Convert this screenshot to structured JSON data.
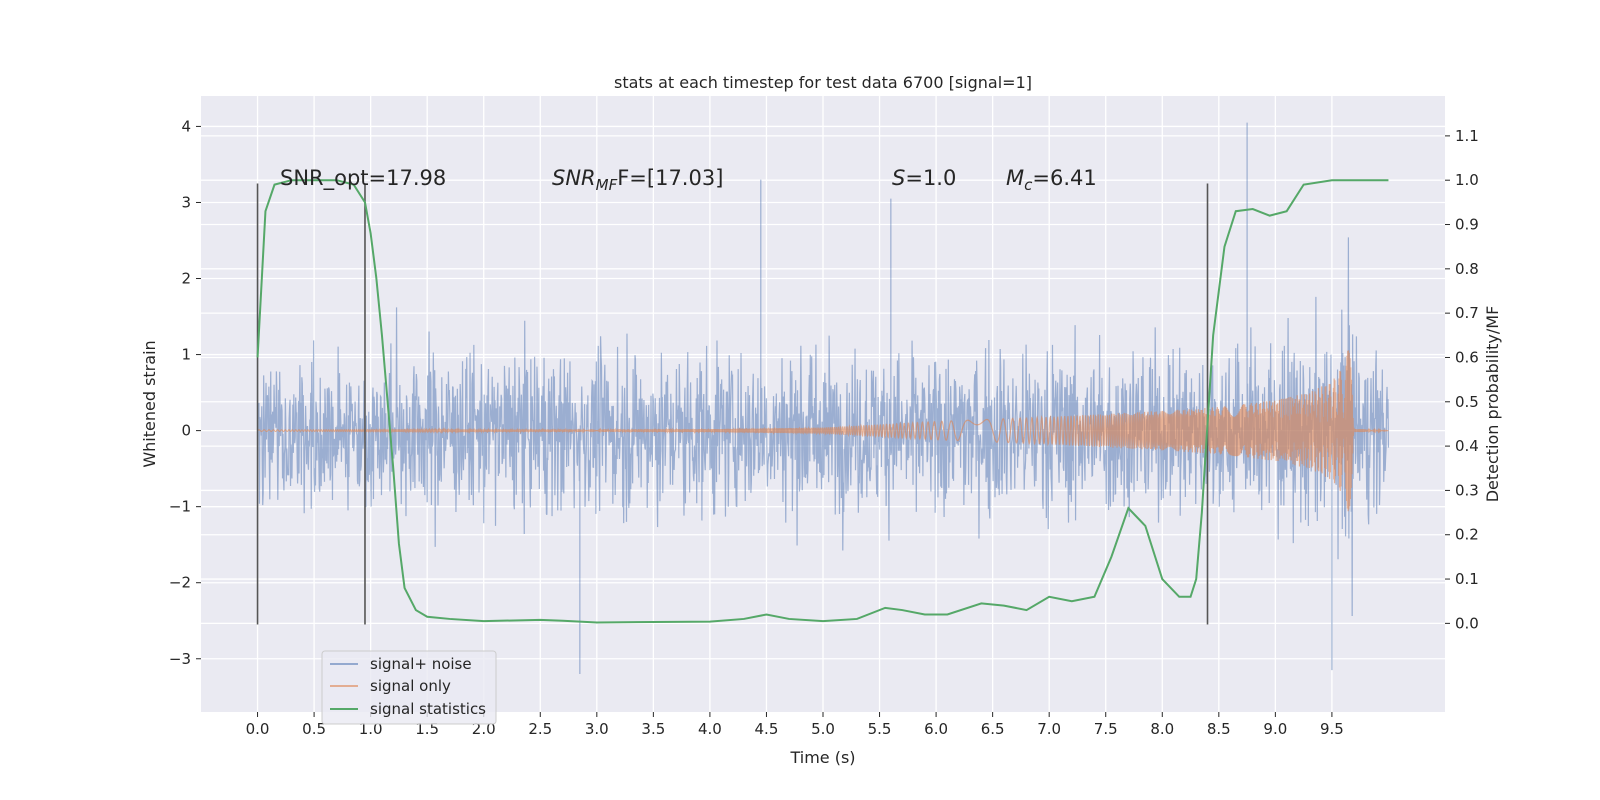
{
  "chart_data": {
    "type": "line",
    "title": "stats at each timestep for test data 6700 [signal=1]",
    "xlabel": "Time (s)",
    "ylabel_left": "Whitened strain",
    "ylabel_right": "Detection probability/MF",
    "xlim": [
      -0.5,
      10.5
    ],
    "ylim_left": [
      -3.7,
      4.4
    ],
    "ylim_right": [
      -0.2,
      1.19
    ],
    "x_ticks": [
      "0.0",
      "0.5",
      "1.0",
      "1.5",
      "2.0",
      "2.5",
      "3.0",
      "3.5",
      "4.0",
      "4.5",
      "5.0",
      "5.5",
      "6.0",
      "6.5",
      "7.0",
      "7.5",
      "8.0",
      "8.5",
      "9.0",
      "9.5"
    ],
    "y_ticks_left": [
      "−3",
      "−2",
      "−1",
      "0",
      "1",
      "2",
      "3",
      "4"
    ],
    "y_ticks_right": [
      "0.0",
      "0.1",
      "0.2",
      "0.3",
      "0.4",
      "0.5",
      "0.6",
      "0.7",
      "0.8",
      "0.9",
      "1.0",
      "1.1"
    ],
    "grid": true,
    "legend_position": "lower-left",
    "legend": [
      "signal+ noise",
      "signal only",
      "signal statistics"
    ],
    "colors": {
      "background": "#eaeaf2",
      "grid": "#ffffff",
      "noise": "#4c72b0",
      "signal": "#dd8452",
      "stat": "#55a868",
      "vline": "#555555"
    },
    "annotations": {
      "snr_opt": "SNR_opt=17.98",
      "snr_mf_name": "SNR",
      "snr_mf_sub": "MF",
      "snr_mf_value": "F=[17.03]",
      "s_name": "S",
      "s_value": "=1.0",
      "mc_name": "M",
      "mc_sub": "c",
      "mc_value": "=6.41"
    },
    "vertical_lines_x": [
      0.0,
      0.95,
      8.4
    ],
    "vertical_lines_range_left": [
      -2.55,
      3.25
    ],
    "series": [
      {
        "name": "signal+ noise",
        "description_values": {
          "x_range": [
            0.0,
            10.0
          ],
          "typical_envelope": [
            -2.0,
            2.0
          ],
          "peaks": [
            [
              0.0,
              2.0
            ],
            [
              4.45,
              3.3
            ],
            [
              5.6,
              3.05
            ],
            [
              8.75,
              4.05
            ],
            [
              2.85,
              -3.2
            ],
            [
              9.5,
              -3.15
            ]
          ]
        }
      },
      {
        "name": "signal only",
        "x": [
          0.0,
          2.0,
          4.0,
          5.0,
          6.0,
          7.0,
          8.0,
          8.5,
          9.0,
          9.3,
          9.5,
          9.6,
          9.65,
          9.68,
          9.7,
          9.72,
          10.0
        ],
        "amplitude": [
          0.01,
          0.015,
          0.02,
          0.04,
          0.12,
          0.18,
          0.26,
          0.31,
          0.4,
          0.5,
          0.65,
          0.85,
          1.1,
          1.45,
          0.1,
          0.03,
          0.0
        ]
      },
      {
        "name": "signal statistics",
        "axis": "right",
        "x": [
          0.0,
          0.07,
          0.15,
          0.3,
          0.5,
          0.7,
          0.85,
          0.95,
          1.0,
          1.05,
          1.1,
          1.15,
          1.2,
          1.25,
          1.3,
          1.4,
          1.5,
          1.7,
          2.0,
          2.5,
          2.7,
          3.0,
          3.5,
          4.0,
          4.3,
          4.5,
          4.7,
          5.0,
          5.3,
          5.55,
          5.7,
          5.9,
          6.1,
          6.4,
          6.6,
          6.8,
          7.0,
          7.2,
          7.4,
          7.55,
          7.7,
          7.85,
          8.0,
          8.15,
          8.25,
          8.3,
          8.35,
          8.45,
          8.55,
          8.65,
          8.8,
          8.95,
          9.1,
          9.25,
          9.5,
          10.0
        ],
        "values": [
          0.6,
          0.93,
          0.99,
          1.0,
          1.0,
          1.0,
          0.99,
          0.95,
          0.88,
          0.78,
          0.65,
          0.5,
          0.35,
          0.18,
          0.08,
          0.03,
          0.015,
          0.01,
          0.005,
          0.008,
          0.006,
          0.002,
          0.003,
          0.004,
          0.01,
          0.02,
          0.01,
          0.005,
          0.01,
          0.035,
          0.03,
          0.02,
          0.02,
          0.045,
          0.04,
          0.03,
          0.06,
          0.05,
          0.06,
          0.15,
          0.26,
          0.22,
          0.1,
          0.06,
          0.06,
          0.1,
          0.25,
          0.65,
          0.85,
          0.93,
          0.935,
          0.92,
          0.93,
          0.99,
          1.0,
          1.0
        ]
      }
    ]
  }
}
